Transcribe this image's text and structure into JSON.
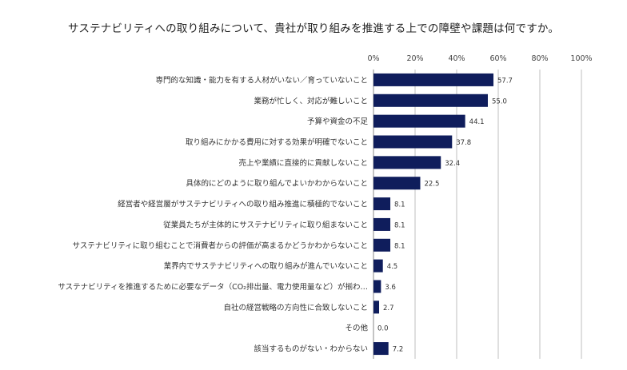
{
  "chart_data": {
    "type": "bar",
    "orientation": "horizontal",
    "title": "サステナビリティへの取り組みについて、貴社が取り組みを推進する上での障壁や課題は何ですか。",
    "xlabel": "",
    "ylabel": "",
    "xlim": [
      0,
      100
    ],
    "ticks": [
      0,
      20,
      40,
      60,
      80,
      100
    ],
    "tick_labels": [
      "0%",
      "20%",
      "40%",
      "60%",
      "80%",
      "100%"
    ],
    "grid": true,
    "bar_color": "#0f1d5c",
    "categories": [
      "専門的な知識・能力を有する人材がいない／育っていないこと",
      "業務が忙しく、対応が難しいこと",
      "予算や資金の不足",
      "取り組みにかかる費用に対する効果が明確でないこと",
      "売上や業績に直接的に貢献しないこと",
      "具体的にどのように取り組んでよいかわからないこと",
      "経営者や経営層がサステナビリティへの取り組み推進に積極的でないこと",
      "従業員たちが主体的にサステナビリティに取り組まないこと",
      "サステナビリティに取り組むことで消費者からの評価が高まるかどうかわからないこと",
      "業界内でサステナビリティへの取り組みが進んでいないこと",
      "サステナビリティを推進するために必要なデータ（CO₂排出量、電力使用量など）が揃わ…",
      "自社の経営戦略の方向性に合致しないこと",
      "その他",
      "該当するものがない・わからない"
    ],
    "values": [
      57.7,
      55.0,
      44.1,
      37.8,
      32.4,
      22.5,
      8.1,
      8.1,
      8.1,
      4.5,
      3.6,
      2.7,
      0.0,
      7.2
    ],
    "value_labels": [
      "57.7",
      "55.0",
      "44.1",
      "37.8",
      "32.4",
      "22.5",
      "8.1",
      "8.1",
      "8.1",
      "4.5",
      "3.6",
      "2.7",
      "0.0",
      "7.2"
    ]
  }
}
